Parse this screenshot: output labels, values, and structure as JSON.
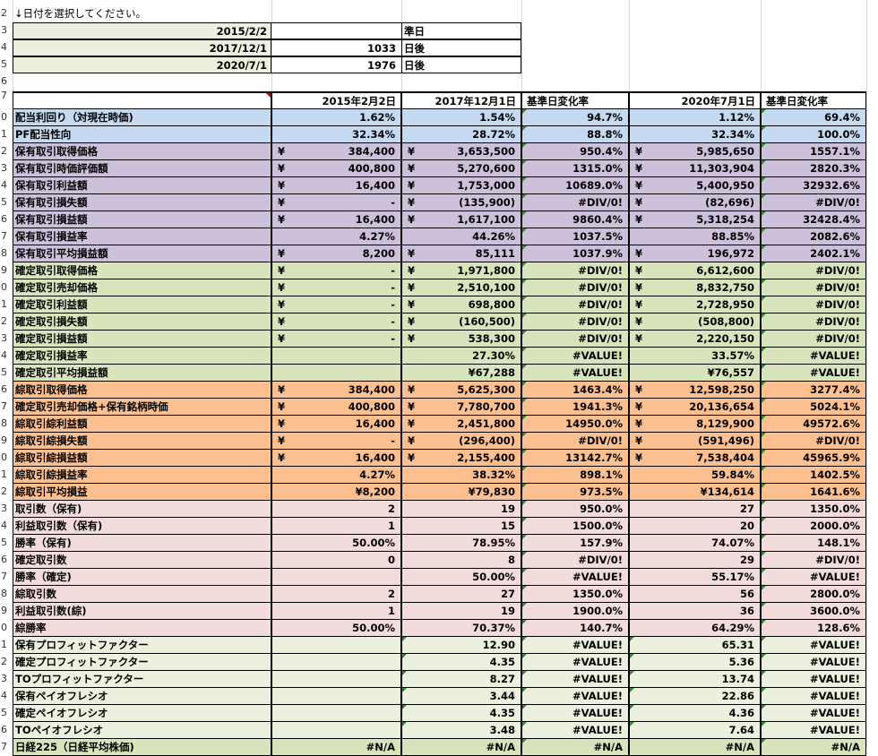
{
  "instruction": "↓日付を選択してください。",
  "selector": {
    "rows": [
      {
        "date": "2015/2/2",
        "num": "",
        "suffix": "準日"
      },
      {
        "date": "2017/12/1",
        "num": "1033",
        "suffix": "日後"
      },
      {
        "date": "2020/7/1",
        "num": "1976",
        "suffix": "日後"
      }
    ]
  },
  "row_numbers": [
    "2",
    "3",
    "4",
    "5",
    "6",
    "7",
    "0",
    "1",
    "2",
    "3",
    "4",
    "5",
    "6",
    "7",
    "8",
    "9",
    "0",
    "1",
    "2",
    "3",
    "4",
    "5",
    "6",
    "7",
    "8",
    "9",
    "0",
    "1",
    "2",
    "3",
    "4",
    "5",
    "6",
    "7",
    "8",
    "9",
    "0",
    "1",
    "2",
    "3",
    "4",
    "5",
    "6",
    "7"
  ],
  "header": {
    "c": "2015年2月2日",
    "e": "2017年12月1日",
    "f": "基準日変化率",
    "h": "2020年7月1日",
    "i": "基準日変化率"
  },
  "colors": {
    "blue": "#c5d9f1",
    "purple": "#ccc0da",
    "green": "#d8e4bc",
    "orange": "#fcc090",
    "pink": "#f2dcdb",
    "lightgreen": "#ebf1de",
    "grid": "#d0d0d0",
    "triangle": "#2e8b2e"
  },
  "rows": [
    {
      "label": "配当利回り（対現在時価)",
      "color": "blue",
      "c": "1.62%",
      "e": "1.54%",
      "f": "94.7%",
      "h": "1.12%",
      "i": "69.4%"
    },
    {
      "label": "PF配当性向",
      "color": "blue",
      "c": "32.34%",
      "e": "28.72%",
      "f": "88.8%",
      "h": "32.34%",
      "i": "100.0%"
    },
    {
      "label": "保有取引取得価格",
      "color": "purple",
      "cy": "¥",
      "c": "384,400",
      "ey": "¥",
      "e": "3,653,500",
      "f": "950.4%",
      "hy": "¥",
      "h": "5,985,650",
      "i": "1557.1%"
    },
    {
      "label": "保有取引時価評価額",
      "color": "purple",
      "cy": "¥",
      "c": "400,800",
      "ey": "¥",
      "e": "5,270,600",
      "f": "1315.0%",
      "hy": "¥",
      "h": "11,303,904",
      "i": "2820.3%"
    },
    {
      "label": "保有取引利益額",
      "color": "purple",
      "cy": "¥",
      "c": "16,400",
      "ey": "¥",
      "e": "1,753,000",
      "f": "10689.0%",
      "hy": "¥",
      "h": "5,400,950",
      "i": "32932.6%"
    },
    {
      "label": "保有取引損失額",
      "color": "purple",
      "cy": "¥",
      "c": "-",
      "ey": "¥",
      "e": "(135,900)",
      "f": "#DIV/0!",
      "hy": "¥",
      "h": "(82,696)",
      "i": "#DIV/0!"
    },
    {
      "label": "保有取引損益額",
      "color": "purple",
      "cy": "¥",
      "c": "16,400",
      "ey": "¥",
      "e": "1,617,100",
      "f": "9860.4%",
      "hy": "¥",
      "h": "5,318,254",
      "i": "32428.4%"
    },
    {
      "label": "保有取引損益率",
      "color": "purple",
      "c": "4.27%",
      "e": "44.26%",
      "f": "1037.5%",
      "h": "88.85%",
      "i": "2082.6%"
    },
    {
      "label": "保有取引平均損益額",
      "color": "purple",
      "cy": "¥",
      "c": "8,200",
      "ey": "¥",
      "e": "85,111",
      "f": "1037.9%",
      "hy": "¥",
      "h": "196,972",
      "i": "2402.1%"
    },
    {
      "label": "確定取引取得価格",
      "color": "green",
      "cy": "¥",
      "c": "-",
      "ey": "¥",
      "e": "1,971,800",
      "f": "#DIV/0!",
      "hy": "¥",
      "h": "6,612,600",
      "i": "#DIV/0!"
    },
    {
      "label": "確定取引売却価格",
      "color": "green",
      "cy": "¥",
      "c": "-",
      "ey": "¥",
      "e": "2,510,100",
      "f": "#DIV/0!",
      "hy": "¥",
      "h": "8,832,750",
      "i": "#DIV/0!"
    },
    {
      "label": "確定取引利益額",
      "color": "green",
      "cy": "¥",
      "c": "-",
      "ey": "¥",
      "e": "698,800",
      "f": "#DIV/0!",
      "hy": "¥",
      "h": "2,728,950",
      "i": "#DIV/0!"
    },
    {
      "label": "確定取引損失額",
      "color": "green",
      "cy": "¥",
      "c": "-",
      "ey": "¥",
      "e": "(160,500)",
      "f": "#DIV/0!",
      "hy": "¥",
      "h": "(508,800)",
      "i": "#DIV/0!"
    },
    {
      "label": "確定取引損益額",
      "color": "green",
      "cy": "¥",
      "c": "-",
      "ey": "¥",
      "e": "538,300",
      "f": "#DIV/0!",
      "hy": "¥",
      "h": "2,220,150",
      "i": "#DIV/0!"
    },
    {
      "label": "確定取引損益率",
      "color": "green",
      "c": "",
      "e": "27.30%",
      "f": "#VALUE!",
      "h": "33.57%",
      "i": "#VALUE!"
    },
    {
      "label": "確定取引平均損益額",
      "color": "green",
      "c": "",
      "e": "¥67,288",
      "f": "#VALUE!",
      "h": "¥76,557",
      "i": "#VALUE!"
    },
    {
      "label": "綜取引取得価格",
      "color": "orange",
      "cy": "¥",
      "c": "384,400",
      "ey": "¥",
      "e": "5,625,300",
      "f": "1463.4%",
      "hy": "¥",
      "h": "12,598,250",
      "i": "3277.4%"
    },
    {
      "label": "確定取引売却価格+保有銘柄時価",
      "color": "orange",
      "cy": "¥",
      "c": "400,800",
      "ey": "¥",
      "e": "7,780,700",
      "f": "1941.3%",
      "hy": "¥",
      "h": "20,136,654",
      "i": "5024.1%"
    },
    {
      "label": "綜取引綜利益額",
      "color": "orange",
      "cy": "¥",
      "c": "16,400",
      "ey": "¥",
      "e": "2,451,800",
      "f": "14950.0%",
      "hy": "¥",
      "h": "8,129,900",
      "i": "49572.6%"
    },
    {
      "label": "綜取引綜損失額",
      "color": "orange",
      "cy": "¥",
      "c": "-",
      "ey": "¥",
      "e": "(296,400)",
      "f": "#DIV/0!",
      "hy": "¥",
      "h": "(591,496)",
      "i": "#DIV/0!"
    },
    {
      "label": "綜取引綜損益額",
      "color": "orange",
      "cy": "¥",
      "c": "16,400",
      "ey": "¥",
      "e": "2,155,400",
      "f": "13142.7%",
      "hy": "¥",
      "h": "7,538,404",
      "i": "45965.9%"
    },
    {
      "label": "綜取引綜損益率",
      "color": "orange",
      "c": "4.27%",
      "e": "38.32%",
      "f": "898.1%",
      "h": "59.84%",
      "i": "1402.5%"
    },
    {
      "label": "綜取引平均損益",
      "color": "orange",
      "c": "¥8,200",
      "e": "¥79,830",
      "f": "973.5%",
      "h": "¥134,614",
      "i": "1641.6%"
    },
    {
      "label": "取引数（保有)",
      "color": "pink",
      "c": "2",
      "e": "19",
      "f": "950.0%",
      "h": "27",
      "i": "1350.0%"
    },
    {
      "label": "利益取引数（保有)",
      "color": "pink",
      "c": "1",
      "e": "15",
      "f": "1500.0%",
      "h": "20",
      "i": "2000.0%"
    },
    {
      "label": "勝率（保有)",
      "color": "pink",
      "c": "50.00%",
      "e": "78.95%",
      "f": "157.9%",
      "h": "74.07%",
      "i": "148.1%"
    },
    {
      "label": "確定取引数",
      "color": "pink",
      "c": "0",
      "e": "8",
      "f": "#DIV/0!",
      "h": "29",
      "i": "#DIV/0!"
    },
    {
      "label": "勝率（確定)",
      "color": "pink",
      "c": "",
      "e": "50.00%",
      "f": "#VALUE!",
      "h": "55.17%",
      "i": "#VALUE!"
    },
    {
      "label": "綜取引数",
      "color": "pink",
      "c": "2",
      "e": "27",
      "f": "1350.0%",
      "h": "56",
      "i": "2800.0%"
    },
    {
      "label": "利益取引数(綜)",
      "color": "pink",
      "c": "1",
      "e": "19",
      "f": "1900.0%",
      "h": "36",
      "i": "3600.0%"
    },
    {
      "label": "綜勝率",
      "color": "pink",
      "c": "50.00%",
      "e": "70.37%",
      "f": "140.7%",
      "h": "64.29%",
      "i": "128.6%"
    },
    {
      "label": "保有プロフィットファクター",
      "color": "lightgreen",
      "c": "",
      "e": "12.90",
      "f": "#VALUE!",
      "h": "65.31",
      "i": "#VALUE!"
    },
    {
      "label": "確定プロフィットファクター",
      "color": "lightgreen",
      "c": "",
      "e": "4.35",
      "f": "#VALUE!",
      "h": "5.36",
      "i": "#VALUE!"
    },
    {
      "label": "TOプロフィットファクター",
      "color": "lightgreen",
      "c": "",
      "e": "8.27",
      "f": "#VALUE!",
      "h": "13.74",
      "i": "#VALUE!"
    },
    {
      "label": "保有ペイオフレシオ",
      "color": "lightgreen",
      "c": "",
      "e": "3.44",
      "f": "#VALUE!",
      "h": "22.86",
      "i": "#VALUE!"
    },
    {
      "label": "確定ペイオフレシオ",
      "color": "lightgreen",
      "c": "",
      "e": "4.35",
      "f": "#VALUE!",
      "h": "4.36",
      "i": "#VALUE!"
    },
    {
      "label": "TOペイオフレシオ",
      "color": "lightgreen",
      "c": "",
      "e": "3.48",
      "f": "#VALUE!",
      "h": "7.64",
      "i": "#VALUE!"
    },
    {
      "label": "日経225（日経平均株価)",
      "color": "green",
      "c": "#N/A",
      "e": "#N/A",
      "f": "#N/A",
      "h": "#N/A",
      "i": "#N/A"
    }
  ]
}
